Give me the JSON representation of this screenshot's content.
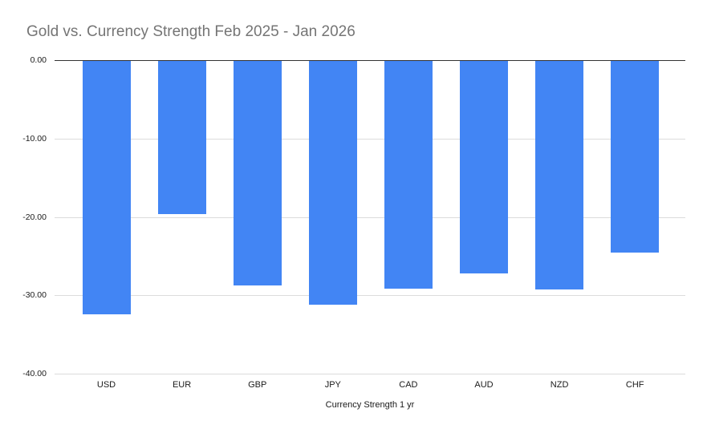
{
  "page": {
    "background": "#ffffff"
  },
  "chart_data": {
    "type": "bar",
    "title": "Gold vs. Currency Strength Feb 2025 - Jan 2026",
    "categories": [
      "USD",
      "EUR",
      "GBP",
      "JPY",
      "CAD",
      "AUD",
      "NZD",
      "CHF"
    ],
    "values": [
      -32.3,
      -19.5,
      -28.6,
      -31.1,
      -29.1,
      -27.1,
      -29.2,
      -24.5
    ],
    "xlabel": "Currency Strength 1 yr",
    "ylabel": "",
    "ylim": [
      -40,
      0
    ],
    "y_ticks": [
      {
        "value": 0,
        "label": "0.00"
      },
      {
        "value": -10,
        "label": "-10.00"
      },
      {
        "value": -20,
        "label": "-20.00"
      },
      {
        "value": -30,
        "label": "-30.00"
      },
      {
        "value": -40,
        "label": "-40.00"
      }
    ],
    "grid": true,
    "legend": "none",
    "bar_orientation": "vertical",
    "colors": {
      "bar": "#4285F4",
      "title": "#757575",
      "axis_line": "#333333",
      "gridline": "#dcdcdc",
      "tick_label": "#1a1a1a"
    }
  }
}
